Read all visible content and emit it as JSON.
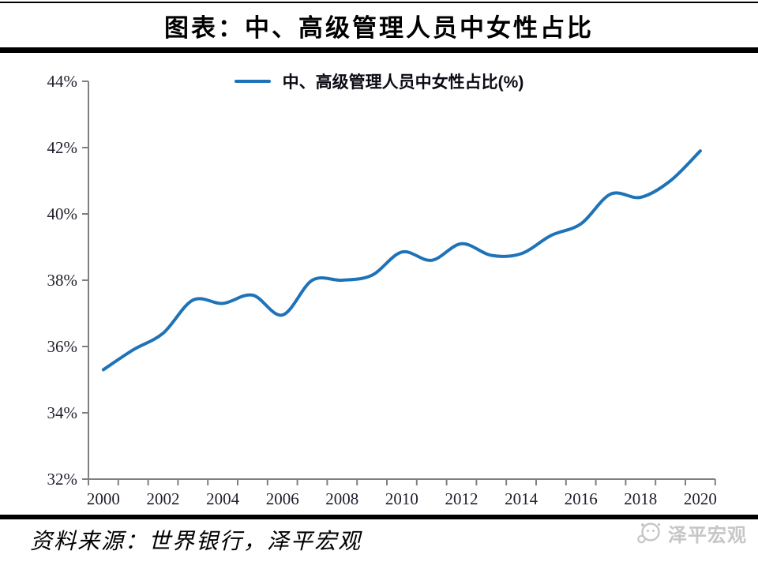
{
  "header": {
    "title": "图表：中、高级管理人员中女性占比"
  },
  "legend": {
    "label": "中、高级管理人员中女性占比(%)"
  },
  "footer": {
    "source": "资料来源：世界银行，泽平宏观",
    "watermark": "泽平宏观"
  },
  "colors": {
    "line": "#1E73B8",
    "axis": "#808080",
    "tick_label": "#20202e",
    "rule": "#000000",
    "watermark": "#c6c6c6"
  },
  "chart_data": {
    "type": "line",
    "title": "图表：中、高级管理人员中女性占比",
    "xlabel": "",
    "ylabel": "",
    "legend_entries": [
      "中、高级管理人员中女性占比(%)"
    ],
    "legend_position": "top-center",
    "grid": false,
    "smooth": true,
    "x": [
      2000,
      2001,
      2002,
      2003,
      2004,
      2005,
      2006,
      2007,
      2008,
      2009,
      2010,
      2011,
      2012,
      2013,
      2014,
      2015,
      2016,
      2017,
      2018,
      2019,
      2020
    ],
    "series": [
      {
        "name": "中、高级管理人员中女性占比(%)",
        "values": [
          35.3,
          35.9,
          36.4,
          37.4,
          37.3,
          37.55,
          36.95,
          38.0,
          38.0,
          38.15,
          38.85,
          38.6,
          39.1,
          38.75,
          38.8,
          39.35,
          39.7,
          40.6,
          40.5,
          41.0,
          41.9
        ]
      }
    ],
    "ylim": [
      32,
      44
    ],
    "ytick_step": 2,
    "ytick_suffix": "%",
    "xtick_labels": [
      "2000",
      "2002",
      "2004",
      "2006",
      "2008",
      "2010",
      "2012",
      "2014",
      "2016",
      "2018",
      "2020"
    ]
  }
}
